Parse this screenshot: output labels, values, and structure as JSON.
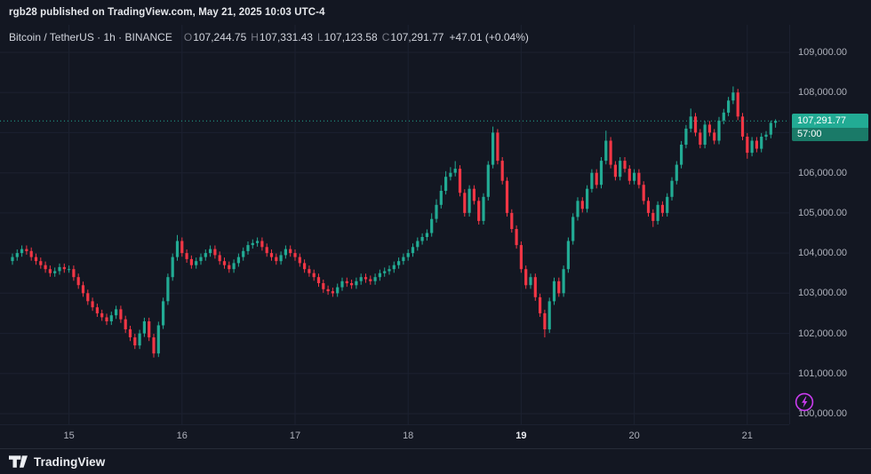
{
  "top_bar": {
    "attribution": "rgb28 published on TradingView.com, May 21, 2025 10:03 UTC-4"
  },
  "legend": {
    "title": "Bitcoin / TetherUS · 1h · BINANCE",
    "ohlc": {
      "o_label": "O",
      "o": "107,244.75",
      "h_label": "H",
      "h": "107,331.43",
      "l_label": "L",
      "l": "107,123.58",
      "c_label": "C",
      "c": "107,291.77",
      "change": "+47.01 (+0.04%)"
    }
  },
  "price_axis": {
    "last_price": "107,291.77",
    "countdown": "57:00",
    "levels": [
      {
        "label": "109,000.00",
        "value": 109000
      },
      {
        "label": "108,000.00",
        "value": 108000
      },
      {
        "label": "107,000.00",
        "value": 107000
      },
      {
        "label": "106,000.00",
        "value": 106000
      },
      {
        "label": "105,000.00",
        "value": 105000
      },
      {
        "label": "104,000.00",
        "value": 104000
      },
      {
        "label": "103,000.00",
        "value": 103000
      },
      {
        "label": "102,000.00",
        "value": 102000
      },
      {
        "label": "101,000.00",
        "value": 101000
      },
      {
        "label": "100,000.00",
        "value": 100000
      }
    ]
  },
  "time_axis": {
    "ticks": [
      {
        "label": "15",
        "index": 12,
        "bold": false
      },
      {
        "label": "16",
        "index": 36,
        "bold": false
      },
      {
        "label": "17",
        "index": 60,
        "bold": false
      },
      {
        "label": "18",
        "index": 84,
        "bold": false
      },
      {
        "label": "19",
        "index": 108,
        "bold": true
      },
      {
        "label": "20",
        "index": 132,
        "bold": false
      },
      {
        "label": "21",
        "index": 156,
        "bold": false
      }
    ]
  },
  "footer": {
    "brand": "TradingView"
  },
  "colors": {
    "up": "#22ab94",
    "down": "#f23645",
    "countdown_bg": "#1a7a68",
    "grid": "#1c2130",
    "flash": "#cb3cf0",
    "background": "#131722"
  },
  "chart_data": {
    "type": "candlestick",
    "title": "Bitcoin / TetherUS",
    "exchange": "BINANCE",
    "interval": "1h",
    "ylim": [
      99735,
      109685
    ],
    "x_offset": 14,
    "x_step": 5.3,
    "last_bar": {
      "open": 107244.75,
      "high": 107331.43,
      "low": 107123.58,
      "close": 107291.77,
      "change": "+47.01 (+0.04%)"
    },
    "candles": [
      [
        103800,
        103990,
        103710,
        103900
      ],
      [
        103900,
        104090,
        103810,
        104000
      ],
      [
        104000,
        104190,
        103910,
        104100
      ],
      [
        104100,
        104190,
        103960,
        104050
      ],
      [
        104050,
        104140,
        103810,
        103900
      ],
      [
        103900,
        103990,
        103710,
        103800
      ],
      [
        103800,
        103890,
        103610,
        103700
      ],
      [
        103700,
        103790,
        103510,
        103600
      ],
      [
        103600,
        103690,
        103410,
        103500
      ],
      [
        103500,
        103640,
        103410,
        103550
      ],
      [
        103550,
        103740,
        103460,
        103650
      ],
      [
        103650,
        103740,
        103510,
        103600
      ],
      [
        103600,
        103690,
        103510,
        103600
      ],
      [
        103600,
        103690,
        103310,
        103400
      ],
      [
        103400,
        103490,
        103110,
        103200
      ],
      [
        103200,
        103290,
        102910,
        103000
      ],
      [
        103000,
        103090,
        102710,
        102800
      ],
      [
        102800,
        102890,
        102560,
        102650
      ],
      [
        102650,
        102740,
        102410,
        102500
      ],
      [
        102500,
        102590,
        102310,
        102400
      ],
      [
        102400,
        102490,
        102210,
        102300
      ],
      [
        102300,
        102540,
        102210,
        102450
      ],
      [
        102450,
        102690,
        102360,
        102600
      ],
      [
        102600,
        102690,
        102260,
        102350
      ],
      [
        102350,
        102440,
        102010,
        102100
      ],
      [
        102100,
        102190,
        101810,
        101900
      ],
      [
        101900,
        101990,
        101610,
        101700
      ],
      [
        101700,
        102090,
        101610,
        102000
      ],
      [
        102000,
        102390,
        101910,
        102300
      ],
      [
        102300,
        102390,
        101810,
        101900
      ],
      [
        101900,
        101990,
        101400,
        101500
      ],
      [
        101500,
        102290,
        101410,
        102200
      ],
      [
        102200,
        102890,
        102110,
        102800
      ],
      [
        102800,
        103490,
        102710,
        103400
      ],
      [
        103400,
        103990,
        103310,
        103900
      ],
      [
        103900,
        104450,
        103810,
        104300
      ],
      [
        104300,
        104390,
        103910,
        104000
      ],
      [
        104000,
        104090,
        103760,
        103850
      ],
      [
        103850,
        103940,
        103610,
        103700
      ],
      [
        103700,
        103890,
        103610,
        103800
      ],
      [
        103800,
        103990,
        103710,
        103900
      ],
      [
        103900,
        104090,
        103810,
        104000
      ],
      [
        104000,
        104190,
        103910,
        104100
      ],
      [
        104100,
        104190,
        103860,
        103950
      ],
      [
        103950,
        104040,
        103710,
        103800
      ],
      [
        103800,
        103890,
        103610,
        103700
      ],
      [
        103700,
        103790,
        103510,
        103600
      ],
      [
        103600,
        103840,
        103510,
        103750
      ],
      [
        103750,
        103990,
        103660,
        103900
      ],
      [
        103900,
        104140,
        103810,
        104050
      ],
      [
        104050,
        104290,
        103960,
        104200
      ],
      [
        104200,
        104340,
        104110,
        104250
      ],
      [
        104250,
        104390,
        104160,
        104300
      ],
      [
        104300,
        104390,
        104060,
        104150
      ],
      [
        104150,
        104240,
        103910,
        104000
      ],
      [
        104000,
        104090,
        103810,
        103900
      ],
      [
        103900,
        103990,
        103710,
        103800
      ],
      [
        103800,
        104040,
        103710,
        103950
      ],
      [
        103950,
        104190,
        103860,
        104100
      ],
      [
        104100,
        104190,
        103910,
        104000
      ],
      [
        104000,
        104090,
        103810,
        103900
      ],
      [
        103900,
        103990,
        103660,
        103750
      ],
      [
        103750,
        103840,
        103510,
        103600
      ],
      [
        103600,
        103690,
        103410,
        103500
      ],
      [
        103500,
        103590,
        103310,
        103400
      ],
      [
        103400,
        103490,
        103160,
        103250
      ],
      [
        103250,
        103340,
        103010,
        103100
      ],
      [
        103100,
        103190,
        102960,
        103050
      ],
      [
        103050,
        103140,
        102910,
        103000
      ],
      [
        103000,
        103240,
        102910,
        103150
      ],
      [
        103150,
        103390,
        103060,
        103300
      ],
      [
        103300,
        103390,
        103160,
        103250
      ],
      [
        103250,
        103340,
        103110,
        103200
      ],
      [
        103200,
        103390,
        103110,
        103300
      ],
      [
        103300,
        103490,
        103210,
        103400
      ],
      [
        103400,
        103490,
        103260,
        103350
      ],
      [
        103350,
        103440,
        103210,
        103300
      ],
      [
        103300,
        103490,
        103210,
        103400
      ],
      [
        103400,
        103590,
        103310,
        103500
      ],
      [
        103500,
        103640,
        103410,
        103550
      ],
      [
        103550,
        103690,
        103460,
        103600
      ],
      [
        103600,
        103790,
        103510,
        103700
      ],
      [
        103700,
        103890,
        103610,
        103800
      ],
      [
        103800,
        103990,
        103710,
        103900
      ],
      [
        103900,
        104090,
        103810,
        104000
      ],
      [
        104000,
        104240,
        103910,
        104150
      ],
      [
        104150,
        104390,
        104060,
        104300
      ],
      [
        104300,
        104490,
        104210,
        104400
      ],
      [
        104400,
        104590,
        104310,
        104500
      ],
      [
        104500,
        104990,
        104410,
        104850
      ],
      [
        104850,
        105340,
        104760,
        105200
      ],
      [
        105200,
        105690,
        105110,
        105550
      ],
      [
        105550,
        106040,
        105460,
        105900
      ],
      [
        105900,
        106140,
        105810,
        106000
      ],
      [
        106000,
        106290,
        105910,
        106100
      ],
      [
        106100,
        106190,
        105410,
        105500
      ],
      [
        105500,
        105590,
        104910,
        105000
      ],
      [
        105000,
        105690,
        104910,
        105600
      ],
      [
        105600,
        105690,
        105210,
        105300
      ],
      [
        105300,
        105390,
        104710,
        104800
      ],
      [
        104800,
        105490,
        104710,
        105400
      ],
      [
        105400,
        106290,
        105310,
        106200
      ],
      [
        106200,
        107150,
        106110,
        107000
      ],
      [
        107000,
        107090,
        106210,
        106300
      ],
      [
        106300,
        106390,
        105710,
        105800
      ],
      [
        105800,
        105890,
        104910,
        105000
      ],
      [
        105000,
        105090,
        104510,
        104600
      ],
      [
        104600,
        104690,
        104110,
        104200
      ],
      [
        104200,
        104290,
        103510,
        103600
      ],
      [
        103600,
        103690,
        103110,
        103200
      ],
      [
        103200,
        103490,
        103110,
        103400
      ],
      [
        103400,
        103490,
        102810,
        102900
      ],
      [
        102900,
        102990,
        102410,
        102500
      ],
      [
        102500,
        102590,
        101900,
        102100
      ],
      [
        102100,
        102890,
        102010,
        102800
      ],
      [
        102800,
        103390,
        102710,
        103300
      ],
      [
        103300,
        103390,
        102910,
        103000
      ],
      [
        103000,
        103690,
        102910,
        103600
      ],
      [
        103600,
        104390,
        103510,
        104300
      ],
      [
        104300,
        104990,
        104210,
        104900
      ],
      [
        104900,
        105390,
        104810,
        105300
      ],
      [
        105300,
        105390,
        105010,
        105100
      ],
      [
        105100,
        105690,
        105010,
        105600
      ],
      [
        105600,
        106090,
        105510,
        106000
      ],
      [
        106000,
        106090,
        105610,
        105700
      ],
      [
        105700,
        106390,
        105610,
        106300
      ],
      [
        106300,
        107050,
        106210,
        106800
      ],
      [
        106800,
        106890,
        106110,
        106200
      ],
      [
        106200,
        106290,
        105810,
        105900
      ],
      [
        105900,
        106390,
        105810,
        106300
      ],
      [
        106300,
        106390,
        106010,
        106100
      ],
      [
        106100,
        106190,
        105710,
        105800
      ],
      [
        105800,
        106090,
        105710,
        106000
      ],
      [
        106000,
        106090,
        105610,
        105700
      ],
      [
        105700,
        105790,
        105210,
        105300
      ],
      [
        105300,
        105390,
        104910,
        105000
      ],
      [
        105000,
        105090,
        104650,
        104800
      ],
      [
        104800,
        105290,
        104710,
        105200
      ],
      [
        105200,
        105290,
        104910,
        105000
      ],
      [
        105000,
        105490,
        104910,
        105400
      ],
      [
        105400,
        105890,
        105310,
        105800
      ],
      [
        105800,
        106290,
        105710,
        106200
      ],
      [
        106200,
        106790,
        106110,
        106700
      ],
      [
        106700,
        107190,
        106610,
        107100
      ],
      [
        107100,
        107600,
        107010,
        107400
      ],
      [
        107400,
        107490,
        106910,
        107000
      ],
      [
        107000,
        107090,
        106610,
        106700
      ],
      [
        106700,
        107290,
        106610,
        107200
      ],
      [
        107200,
        107290,
        106910,
        107000
      ],
      [
        107000,
        107090,
        106710,
        106800
      ],
      [
        106800,
        107390,
        106710,
        107300
      ],
      [
        107300,
        107590,
        107210,
        107500
      ],
      [
        107500,
        107890,
        107410,
        107800
      ],
      [
        107800,
        108150,
        107710,
        108000
      ],
      [
        108000,
        108090,
        107310,
        107400
      ],
      [
        107400,
        107490,
        106810,
        106900
      ],
      [
        106900,
        106990,
        106350,
        106500
      ],
      [
        106500,
        106890,
        106410,
        106800
      ],
      [
        106800,
        106890,
        106510,
        106600
      ],
      [
        106600,
        106990,
        106510,
        106900
      ],
      [
        106900,
        107040,
        106810,
        106950
      ],
      [
        106950,
        107300,
        106860,
        107244.75
      ],
      [
        107244.75,
        107331.43,
        107123.58,
        107291.77
      ]
    ]
  }
}
